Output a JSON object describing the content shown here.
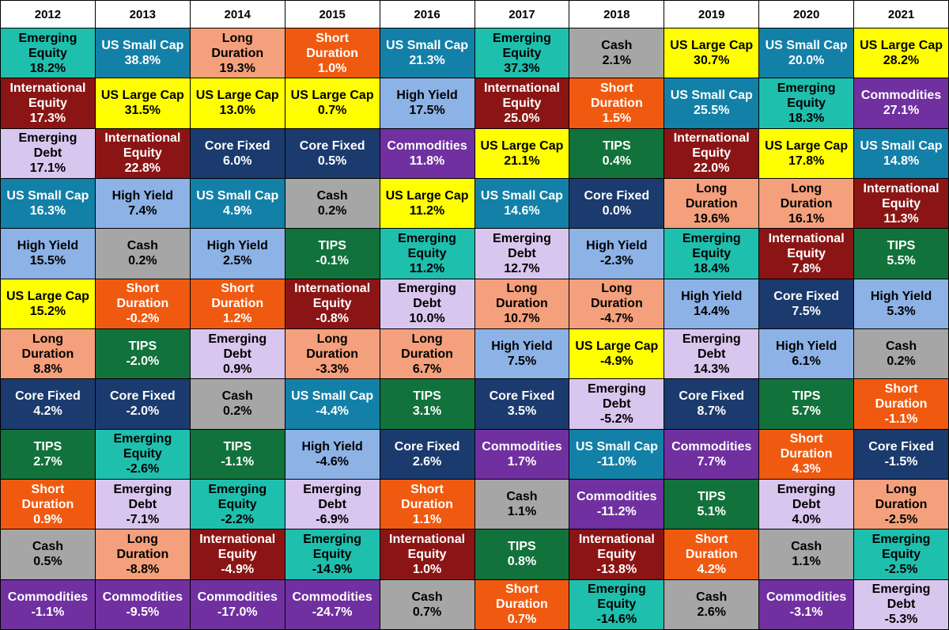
{
  "chart_data": {
    "type": "table",
    "years": [
      "2012",
      "2013",
      "2014",
      "2015",
      "2016",
      "2017",
      "2018",
      "2019",
      "2020",
      "2021"
    ],
    "colors": {
      "Emerging Equity": {
        "bg": "#1fbfae",
        "fg": "#000000"
      },
      "International Equity": {
        "bg": "#8b1515",
        "fg": "#ffffff"
      },
      "Emerging Debt": {
        "bg": "#d9c6ee",
        "fg": "#000000"
      },
      "US Small Cap": {
        "bg": "#1380a8",
        "fg": "#ffffff"
      },
      "High Yield": {
        "bg": "#8cb2e6",
        "fg": "#000000"
      },
      "US Large Cap": {
        "bg": "#ffff00",
        "fg": "#000000"
      },
      "Long Duration": {
        "bg": "#f4a07c",
        "fg": "#000000"
      },
      "Core Fixed": {
        "bg": "#1b3b6e",
        "fg": "#ffffff"
      },
      "TIPS": {
        "bg": "#12723b",
        "fg": "#ffffff"
      },
      "Short Duration": {
        "bg": "#f05a10",
        "fg": "#ffffff"
      },
      "Cash": {
        "bg": "#a6a6a6",
        "fg": "#000000"
      },
      "Commodities": {
        "bg": "#7030a0",
        "fg": "#ffffff"
      }
    },
    "columns": [
      [
        [
          "Emerging Equity",
          "18.2%"
        ],
        [
          "International Equity",
          "17.3%"
        ],
        [
          "Emerging Debt",
          "17.1%"
        ],
        [
          "US Small Cap",
          "16.3%"
        ],
        [
          "High Yield",
          "15.5%"
        ],
        [
          "US Large Cap",
          "15.2%"
        ],
        [
          "Long Duration",
          "8.8%"
        ],
        [
          "Core Fixed",
          "4.2%"
        ],
        [
          "TIPS",
          "2.7%"
        ],
        [
          "Short Duration",
          "0.9%"
        ],
        [
          "Cash",
          "0.5%"
        ],
        [
          "Commodities",
          "-1.1%"
        ]
      ],
      [
        [
          "US Small Cap",
          "38.8%"
        ],
        [
          "US Large Cap",
          "31.5%"
        ],
        [
          "International Equity",
          "22.8%"
        ],
        [
          "High Yield",
          "7.4%"
        ],
        [
          "Cash",
          "0.2%"
        ],
        [
          "Short Duration",
          "-0.2%"
        ],
        [
          "TIPS",
          "-2.0%"
        ],
        [
          "Core Fixed",
          "-2.0%"
        ],
        [
          "Emerging Equity",
          "-2.6%"
        ],
        [
          "Emerging Debt",
          "-7.1%"
        ],
        [
          "Long Duration",
          "-8.8%"
        ],
        [
          "Commodities",
          "-9.5%"
        ]
      ],
      [
        [
          "Long Duration",
          "19.3%"
        ],
        [
          "US Large Cap",
          "13.0%"
        ],
        [
          "Core Fixed",
          "6.0%"
        ],
        [
          "US Small Cap",
          "4.9%"
        ],
        [
          "High Yield",
          "2.5%"
        ],
        [
          "Short Duration",
          "1.2%"
        ],
        [
          "Emerging Debt",
          "0.9%"
        ],
        [
          "Cash",
          "0.2%"
        ],
        [
          "TIPS",
          "-1.1%"
        ],
        [
          "Emerging Equity",
          "-2.2%"
        ],
        [
          "International Equity",
          "-4.9%"
        ],
        [
          "Commodities",
          "-17.0%"
        ]
      ],
      [
        [
          "Short Duration",
          "1.0%"
        ],
        [
          "US Large Cap",
          "0.7%"
        ],
        [
          "Core Fixed",
          "0.5%"
        ],
        [
          "Cash",
          "0.2%"
        ],
        [
          "TIPS",
          "-0.1%"
        ],
        [
          "International Equity",
          "-0.8%"
        ],
        [
          "Long Duration",
          "-3.3%"
        ],
        [
          "US Small Cap",
          "-4.4%"
        ],
        [
          "High Yield",
          "-4.6%"
        ],
        [
          "Emerging Debt",
          "-6.9%"
        ],
        [
          "Emerging Equity",
          "-14.9%"
        ],
        [
          "Commodities",
          "-24.7%"
        ]
      ],
      [
        [
          "US Small Cap",
          "21.3%"
        ],
        [
          "High Yield",
          "17.5%"
        ],
        [
          "Commodities",
          "11.8%"
        ],
        [
          "US Large Cap",
          "11.2%"
        ],
        [
          "Emerging Equity",
          "11.2%"
        ],
        [
          "Emerging Debt",
          "10.0%"
        ],
        [
          "Long Duration",
          "6.7%"
        ],
        [
          "TIPS",
          "3.1%"
        ],
        [
          "Core Fixed",
          "2.6%"
        ],
        [
          "Short Duration",
          "1.1%"
        ],
        [
          "International Equity",
          "1.0%"
        ],
        [
          "Cash",
          "0.7%"
        ]
      ],
      [
        [
          "Emerging Equity",
          "37.3%"
        ],
        [
          "International Equity",
          "25.0%"
        ],
        [
          "US Large Cap",
          "21.1%"
        ],
        [
          "US Small Cap",
          "14.6%"
        ],
        [
          "Emerging Debt",
          "12.7%"
        ],
        [
          "Long Duration",
          "10.7%"
        ],
        [
          "High Yield",
          "7.5%"
        ],
        [
          "Core Fixed",
          "3.5%"
        ],
        [
          "Commodities",
          "1.7%"
        ],
        [
          "Cash",
          "1.1%"
        ],
        [
          "TIPS",
          "0.8%"
        ],
        [
          "Short Duration",
          "0.7%"
        ]
      ],
      [
        [
          "Cash",
          "2.1%"
        ],
        [
          "Short Duration",
          "1.5%"
        ],
        [
          "TIPS",
          "0.4%"
        ],
        [
          "Core Fixed",
          "0.0%"
        ],
        [
          "High Yield",
          "-2.3%"
        ],
        [
          "Long Duration",
          "-4.7%"
        ],
        [
          "US Large Cap",
          "-4.9%"
        ],
        [
          "Emerging Debt",
          "-5.2%"
        ],
        [
          "US Small Cap",
          "-11.0%"
        ],
        [
          "Commodities",
          "-11.2%"
        ],
        [
          "International Equity",
          "-13.8%"
        ],
        [
          "Emerging Equity",
          "-14.6%"
        ]
      ],
      [
        [
          "US Large Cap",
          "30.7%"
        ],
        [
          "US Small Cap",
          "25.5%"
        ],
        [
          "International Equity",
          "22.0%"
        ],
        [
          "Long Duration",
          "19.6%"
        ],
        [
          "Emerging Equity",
          "18.4%"
        ],
        [
          "High Yield",
          "14.4%"
        ],
        [
          "Emerging Debt",
          "14.3%"
        ],
        [
          "Core Fixed",
          "8.7%"
        ],
        [
          "Commodities",
          "7.7%"
        ],
        [
          "TIPS",
          "5.1%"
        ],
        [
          "Short Duration",
          "4.2%"
        ],
        [
          "Cash",
          "2.6%"
        ]
      ],
      [
        [
          "US Small Cap",
          "20.0%"
        ],
        [
          "Emerging Equity",
          "18.3%"
        ],
        [
          "US Large Cap",
          "17.8%"
        ],
        [
          "Long Duration",
          "16.1%"
        ],
        [
          "International Equity",
          "7.8%"
        ],
        [
          "Core Fixed",
          "7.5%"
        ],
        [
          "High Yield",
          "6.1%"
        ],
        [
          "TIPS",
          "5.7%"
        ],
        [
          "Short Duration",
          "4.3%"
        ],
        [
          "Emerging Debt",
          "4.0%"
        ],
        [
          "Cash",
          "1.1%"
        ],
        [
          "Commodities",
          "-3.1%"
        ]
      ],
      [
        [
          "US Large Cap",
          "28.2%"
        ],
        [
          "Commodities",
          "27.1%"
        ],
        [
          "US Small Cap",
          "14.8%"
        ],
        [
          "International Equity",
          "11.3%"
        ],
        [
          "TIPS",
          "5.5%"
        ],
        [
          "High Yield",
          "5.3%"
        ],
        [
          "Cash",
          "0.2%"
        ],
        [
          "Short Duration",
          "-1.1%"
        ],
        [
          "Core Fixed",
          "-1.5%"
        ],
        [
          "Long Duration",
          "-2.5%"
        ],
        [
          "Emerging Equity",
          "-2.5%"
        ],
        [
          "Emerging Debt",
          "-5.3%"
        ]
      ]
    ]
  }
}
